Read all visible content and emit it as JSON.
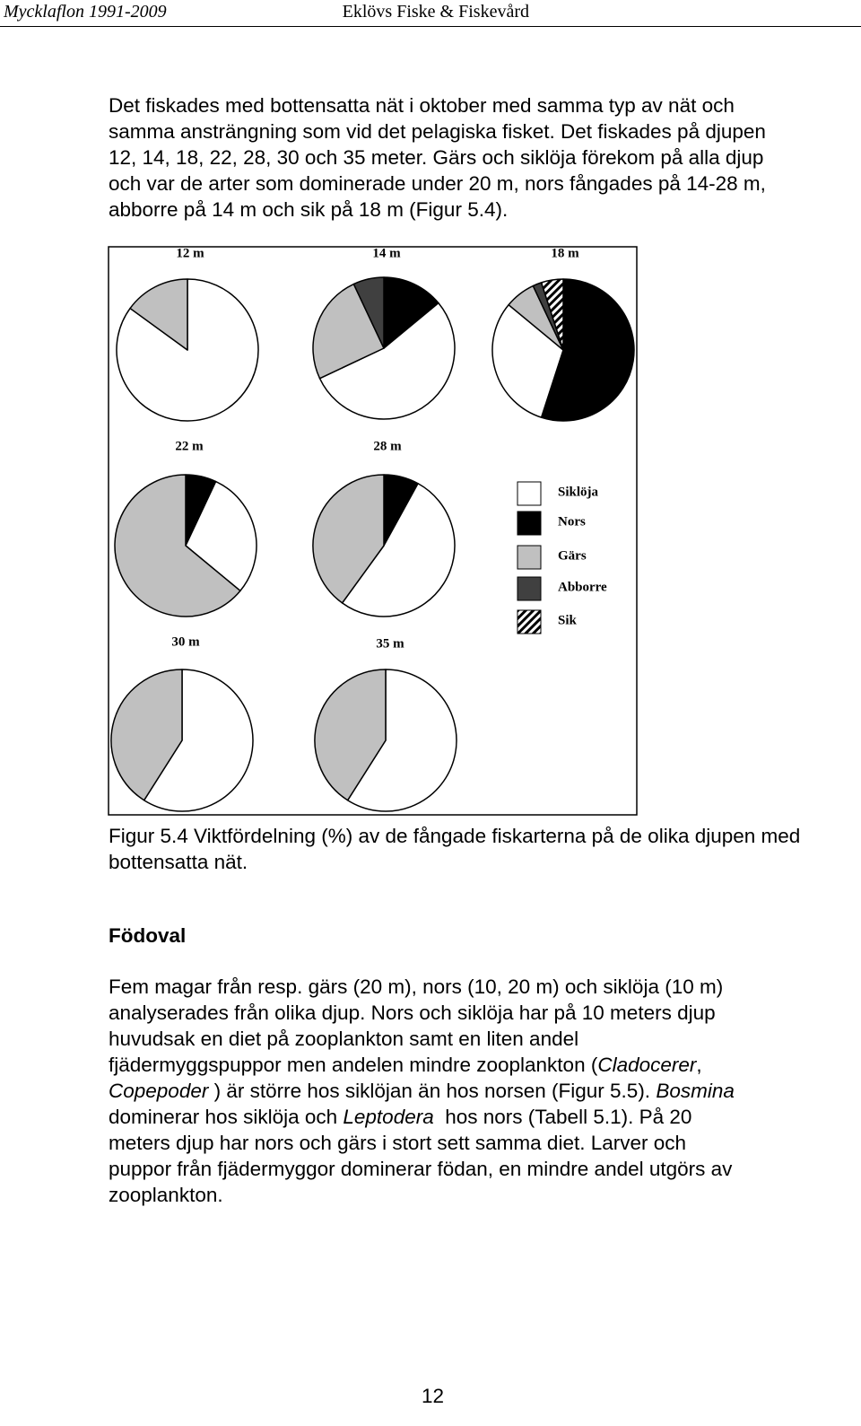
{
  "header": {
    "left": "Mycklaflon 1991-2009",
    "right": "Eklövs Fiske & Fiskevård"
  },
  "paragraph1": [
    "Det fiskades med bottensatta nät i oktober med samma typ av nät och",
    "samma ansträngning som vid det pelagiska fisket. Det fiskades på djupen",
    "12, 14, 18, 22, 28, 30 och 35 meter. Gärs och siklöja förekom på alla djup",
    "och var de arter som dominerade under 20 m, nors fångades på 14-28 m,",
    "abborre på 14 m och sik på 18 m (Figur 5.4)."
  ],
  "chart_data": [
    {
      "type": "pie",
      "title": "12 m",
      "categories": [
        "Siklöja",
        "Gärs"
      ],
      "values": [
        85,
        15
      ]
    },
    {
      "type": "pie",
      "title": "14 m",
      "categories": [
        "Nors",
        "Siklöja",
        "Gärs",
        "Abborre"
      ],
      "values": [
        14,
        54,
        25,
        7
      ]
    },
    {
      "type": "pie",
      "title": "18 m",
      "categories": [
        "Nors",
        "Siklöja",
        "Gärs",
        "Abborre",
        "Sik"
      ],
      "values": [
        55,
        31,
        7,
        2,
        5
      ]
    },
    {
      "type": "pie",
      "title": "22 m",
      "categories": [
        "Nors",
        "Siklöja",
        "Gärs"
      ],
      "values": [
        7,
        29,
        64
      ]
    },
    {
      "type": "pie",
      "title": "28 m",
      "categories": [
        "Nors",
        "Siklöja",
        "Gärs"
      ],
      "values": [
        8,
        52,
        40
      ]
    },
    {
      "type": "pie",
      "title": "30 m",
      "categories": [
        "Siklöja",
        "Gärs"
      ],
      "values": [
        59,
        41
      ]
    },
    {
      "type": "pie",
      "title": "35 m",
      "categories": [
        "Siklöja",
        "Gärs"
      ],
      "values": [
        59,
        41
      ]
    }
  ],
  "legend": [
    {
      "name": "Siklöja",
      "color": "#ffffff"
    },
    {
      "name": "Nors",
      "color": "#000000"
    },
    {
      "name": "Gärs",
      "color": "#c0c0c0"
    },
    {
      "name": "Abborre",
      "color": "#404040"
    },
    {
      "name": "Sik",
      "color": "#000000",
      "pattern": "hatch"
    }
  ],
  "caption": [
    "Figur 5.4 Viktfördelning (%) av de fångade fiskarterna på de olika djupen med",
    "bottensatta nät."
  ],
  "heading": "Födoval",
  "paragraph2": [
    [
      {
        "text": "Fem magar från resp. gärs (20 m), nors (10, 20 m) och siklöja (10 m)"
      }
    ],
    [
      {
        "text": "analyserades från olika djup. Nors och siklöja har på 10 meters djup"
      }
    ],
    [
      {
        "text": "huvudsak en diet på zooplankton samt en liten andel"
      }
    ],
    [
      {
        "text": "fjädermyggspuppor men andelen mindre zooplankton ("
      },
      {
        "text": "Cladocerer",
        "italic": true
      },
      {
        "text": ","
      }
    ],
    [
      {
        "text": "Copepoder",
        "italic": true
      },
      {
        "text": " ) är större hos siklöjan än hos norsen (Figur 5.5). "
      },
      {
        "text": "Bosmina",
        "italic": true
      }
    ],
    [
      {
        "text": "dominerar hos siklöja och "
      },
      {
        "text": "Leptodera",
        "italic": true
      },
      {
        "text": "  hos nors (Tabell 5.1). På 20"
      }
    ],
    [
      {
        "text": "meters djup har nors och gärs i stort sett samma diet. Larver och"
      }
    ],
    [
      {
        "text": "puppor från fjädermyggor dominerar födan, en mindre andel utgörs av"
      }
    ],
    [
      {
        "text": "zooplankton."
      }
    ]
  ],
  "page_number": "12"
}
